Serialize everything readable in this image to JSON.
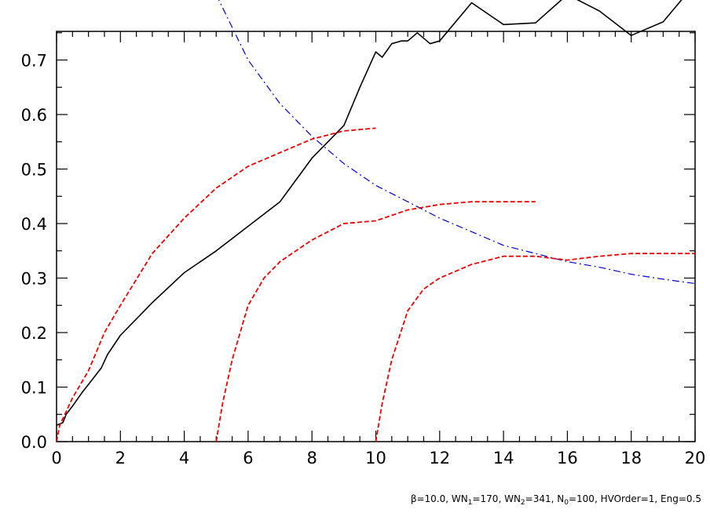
{
  "chart_data": {
    "type": "line",
    "title": "",
    "xlabel": "",
    "ylabel": "",
    "xlim": [
      0,
      20
    ],
    "ylim": [
      0,
      0.75
    ],
    "grid": false,
    "x_ticks": [
      "0",
      "2",
      "4",
      "6",
      "8",
      "10",
      "12",
      "14",
      "16",
      "18",
      "20"
    ],
    "y_ticks": [
      "0.0",
      "0.1",
      "0.2",
      "0.3",
      "0.4",
      "0.5",
      "0.6",
      "0.7"
    ],
    "caption": {
      "beta": "β=10.0",
      "wn1_prefix": "WN",
      "wn1_sub": "1",
      "wn1_value": "=170",
      "wn2_prefix": "WN",
      "wn2_sub": "2",
      "wn2_value": "=341",
      "n0_prefix": "N",
      "n0_sub": "0",
      "n0_value": "=100",
      "hvorder": "HVOrder=1",
      "eng": "Eng=0.5",
      "separator": ", "
    },
    "series": [
      {
        "style": "solid",
        "color": "#000000",
        "points": [
          [
            0,
            0.03
          ],
          [
            0.2,
            0.035
          ],
          [
            0.3,
            0.05
          ],
          [
            0.5,
            0.065
          ],
          [
            0.8,
            0.09
          ],
          [
            1.0,
            0.105
          ],
          [
            1.2,
            0.12
          ],
          [
            1.4,
            0.135
          ],
          [
            1.6,
            0.16
          ],
          [
            2.0,
            0.195
          ],
          [
            3.0,
            0.255
          ],
          [
            4.0,
            0.31
          ],
          [
            5.0,
            0.35
          ],
          [
            6.0,
            0.395
          ],
          [
            7.0,
            0.44
          ],
          [
            8.0,
            0.52
          ],
          [
            9.0,
            0.58
          ],
          [
            9.5,
            0.65
          ],
          [
            10.0,
            0.715
          ],
          [
            10.2,
            0.705
          ],
          [
            10.5,
            0.73
          ],
          [
            10.8,
            0.735
          ],
          [
            11.0,
            0.735
          ],
          [
            11.3,
            0.75
          ],
          [
            11.7,
            0.73
          ],
          [
            12.0,
            0.735
          ],
          [
            13.0,
            0.805
          ],
          [
            14.0,
            0.765
          ],
          [
            15.0,
            0.768
          ],
          [
            16.0,
            0.82
          ],
          [
            17.0,
            0.79
          ],
          [
            18.0,
            0.745
          ],
          [
            19.0,
            0.77
          ],
          [
            20.0,
            0.84
          ]
        ]
      },
      {
        "style": "dashdot",
        "color": "#0000cc",
        "points": [
          [
            5.0,
            0.82
          ],
          [
            6.0,
            0.7
          ],
          [
            7.0,
            0.62
          ],
          [
            8.0,
            0.56
          ],
          [
            9.0,
            0.51
          ],
          [
            10.0,
            0.47
          ],
          [
            11.0,
            0.44
          ],
          [
            12.0,
            0.41
          ],
          [
            13.0,
            0.385
          ],
          [
            14.0,
            0.36
          ],
          [
            15.0,
            0.345
          ],
          [
            16.0,
            0.33
          ],
          [
            17.0,
            0.32
          ],
          [
            18.0,
            0.307
          ],
          [
            19.0,
            0.298
          ],
          [
            20.0,
            0.29
          ]
        ]
      },
      {
        "style": "dashed",
        "color": "#ee0000",
        "points": [
          [
            0,
            0.0
          ],
          [
            0.1,
            0.03
          ],
          [
            0.5,
            0.08
          ],
          [
            1.0,
            0.13
          ],
          [
            1.5,
            0.2
          ],
          [
            2.0,
            0.25
          ],
          [
            3.0,
            0.345
          ],
          [
            4.0,
            0.41
          ],
          [
            5.0,
            0.465
          ],
          [
            6.0,
            0.505
          ],
          [
            7.0,
            0.53
          ],
          [
            8.0,
            0.555
          ],
          [
            9.0,
            0.57
          ],
          [
            10.0,
            0.575
          ]
        ]
      },
      {
        "style": "dashed",
        "color": "#ee0000",
        "points": [
          [
            5.0,
            0.0
          ],
          [
            5.2,
            0.07
          ],
          [
            5.5,
            0.15
          ],
          [
            6.0,
            0.25
          ],
          [
            6.5,
            0.3
          ],
          [
            7.0,
            0.33
          ],
          [
            8.0,
            0.37
          ],
          [
            9.0,
            0.4
          ],
          [
            10.0,
            0.405
          ],
          [
            11.0,
            0.425
          ],
          [
            12.0,
            0.435
          ],
          [
            13.0,
            0.44
          ],
          [
            14.0,
            0.44
          ],
          [
            15.0,
            0.44
          ]
        ]
      },
      {
        "style": "dashed",
        "color": "#ee0000",
        "points": [
          [
            10.0,
            0.0
          ],
          [
            10.2,
            0.07
          ],
          [
            10.5,
            0.15
          ],
          [
            11.0,
            0.24
          ],
          [
            11.5,
            0.28
          ],
          [
            12.0,
            0.3
          ],
          [
            13.0,
            0.325
          ],
          [
            14.0,
            0.34
          ],
          [
            15.0,
            0.34
          ],
          [
            16.0,
            0.333
          ],
          [
            17.0,
            0.34
          ],
          [
            18.0,
            0.345
          ],
          [
            19.0,
            0.345
          ],
          [
            20.0,
            0.345
          ]
        ]
      }
    ]
  }
}
